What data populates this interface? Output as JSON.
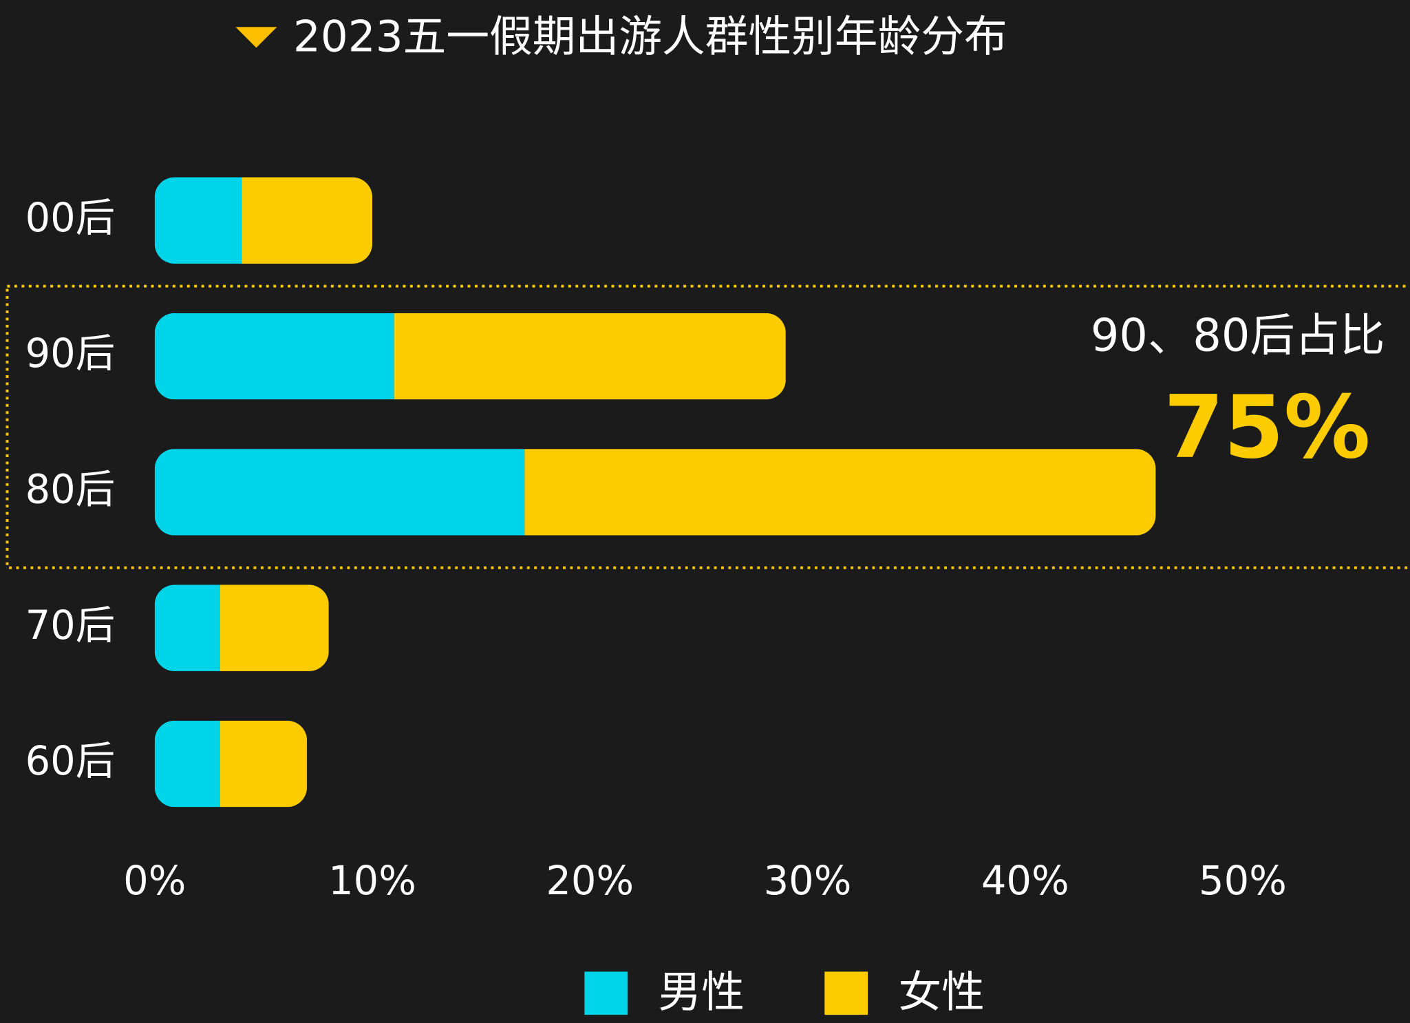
{
  "chart_data": {
    "type": "stacked-barh",
    "title": "2023五一假期出游人群性别年龄分布",
    "categories": [
      "00后",
      "90后",
      "80后",
      "70后",
      "60后"
    ],
    "series": [
      {
        "name": "男性",
        "color": "#00d4e8",
        "values": [
          4,
          11,
          17,
          3,
          3
        ]
      },
      {
        "name": "女性",
        "color": "#fccb00",
        "values": [
          6,
          18,
          29,
          5,
          4
        ]
      }
    ],
    "xlim": [
      0,
      58
    ],
    "xticks": [
      {
        "value": 0,
        "label": "0%"
      },
      {
        "value": 10,
        "label": "10%"
      },
      {
        "value": 20,
        "label": "20%"
      },
      {
        "value": 30,
        "label": "30%"
      },
      {
        "value": 40,
        "label": "40%"
      },
      {
        "value": 50,
        "label": "50%"
      }
    ],
    "annotations": [
      "90、80后占比",
      "75%"
    ],
    "legend": "bottom"
  }
}
